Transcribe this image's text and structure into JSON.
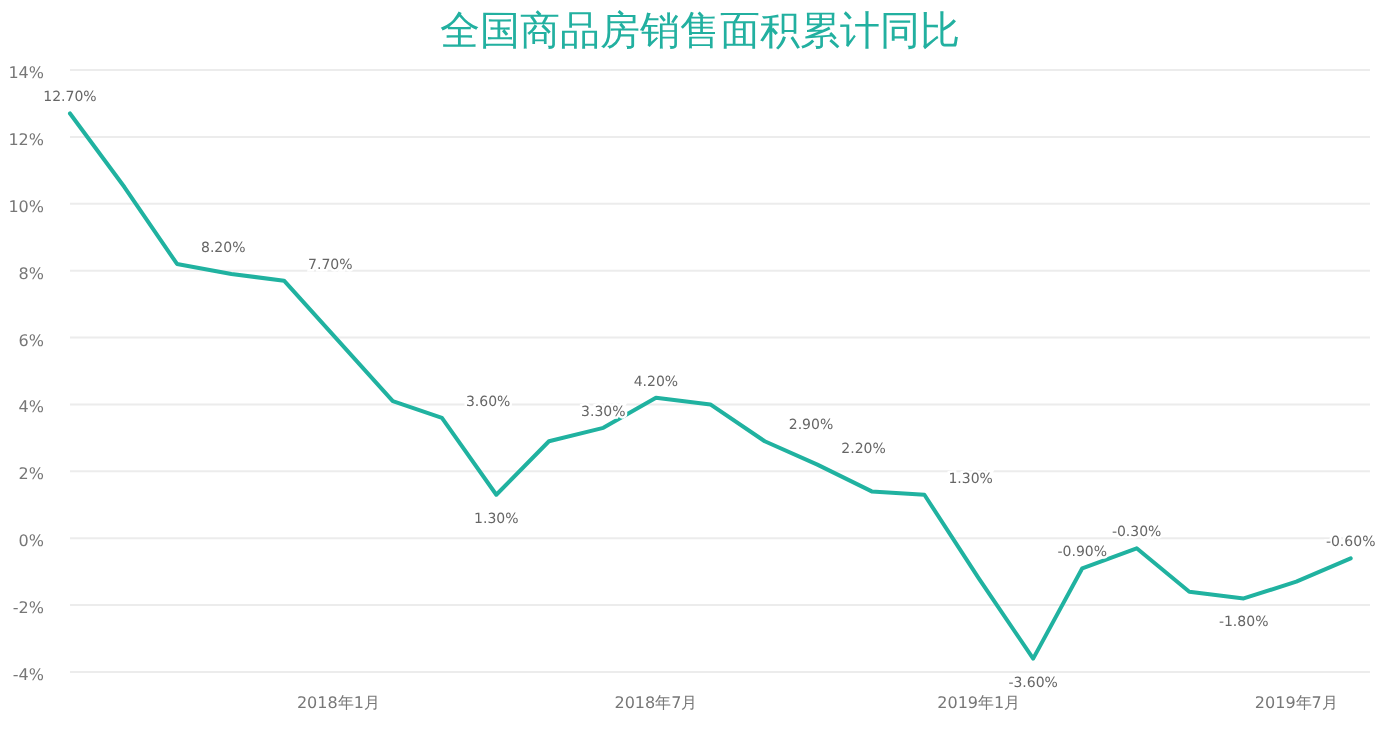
{
  "chart_data": {
    "type": "line",
    "title": "全国商品房销售面积累计同比",
    "x": [
      "2017-08",
      "2017-09",
      "2017-10",
      "2017-11",
      "2017-12",
      "2018-01",
      "2018-02",
      "2018-03",
      "2018-04",
      "2018-05",
      "2018-06",
      "2018-07",
      "2018-08",
      "2018-09",
      "2018-10",
      "2018-11",
      "2018-12",
      "2019-01",
      "2019-02",
      "2019-03",
      "2019-04",
      "2019-05",
      "2019-06",
      "2019-07",
      "2019-08"
    ],
    "series": [
      {
        "color": "#20b2a0",
        "values": [
          12.7,
          10.5,
          8.2,
          7.9,
          7.7,
          5.9,
          4.1,
          3.6,
          1.3,
          2.9,
          3.3,
          4.2,
          4.0,
          2.9,
          2.2,
          1.4,
          1.3,
          -1.2,
          -3.6,
          -0.9,
          -0.3,
          -1.6,
          -1.8,
          -1.3,
          -0.6
        ],
        "value_labels": [
          "12.70%",
          null,
          "8.20%",
          null,
          "7.70%",
          null,
          null,
          "3.60%",
          "1.30%",
          null,
          "3.30%",
          "4.20%",
          null,
          "2.90%",
          "2.20%",
          null,
          "1.30%",
          null,
          "-3.60%",
          "-0.90%",
          "-0.30%",
          null,
          "-1.80%",
          null,
          "-0.60%"
        ]
      }
    ],
    "xlim": [
      "2017-08",
      "2019-08-12"
    ],
    "xticks": [
      {
        "value": "2018-01",
        "label": "2018年1月"
      },
      {
        "value": "2018-07",
        "label": "2018年7月"
      },
      {
        "value": "2019-01",
        "label": "2019年1月"
      },
      {
        "value": "2019-07",
        "label": "2019年7月"
      }
    ],
    "ylim": [
      -4,
      14
    ],
    "yticks": [
      {
        "value": -4,
        "label": "-4%"
      },
      {
        "value": -2,
        "label": "-2%"
      },
      {
        "value": 0,
        "label": "0%"
      },
      {
        "value": 2,
        "label": "2%"
      },
      {
        "value": 4,
        "label": "4%"
      },
      {
        "value": 6,
        "label": "6%"
      },
      {
        "value": 8,
        "label": "8%"
      },
      {
        "value": 10,
        "label": "10%"
      },
      {
        "value": 12,
        "label": "12%"
      },
      {
        "value": 14,
        "label": "14%"
      }
    ],
    "grid": "y",
    "line_style": "solid",
    "marker": "none"
  }
}
